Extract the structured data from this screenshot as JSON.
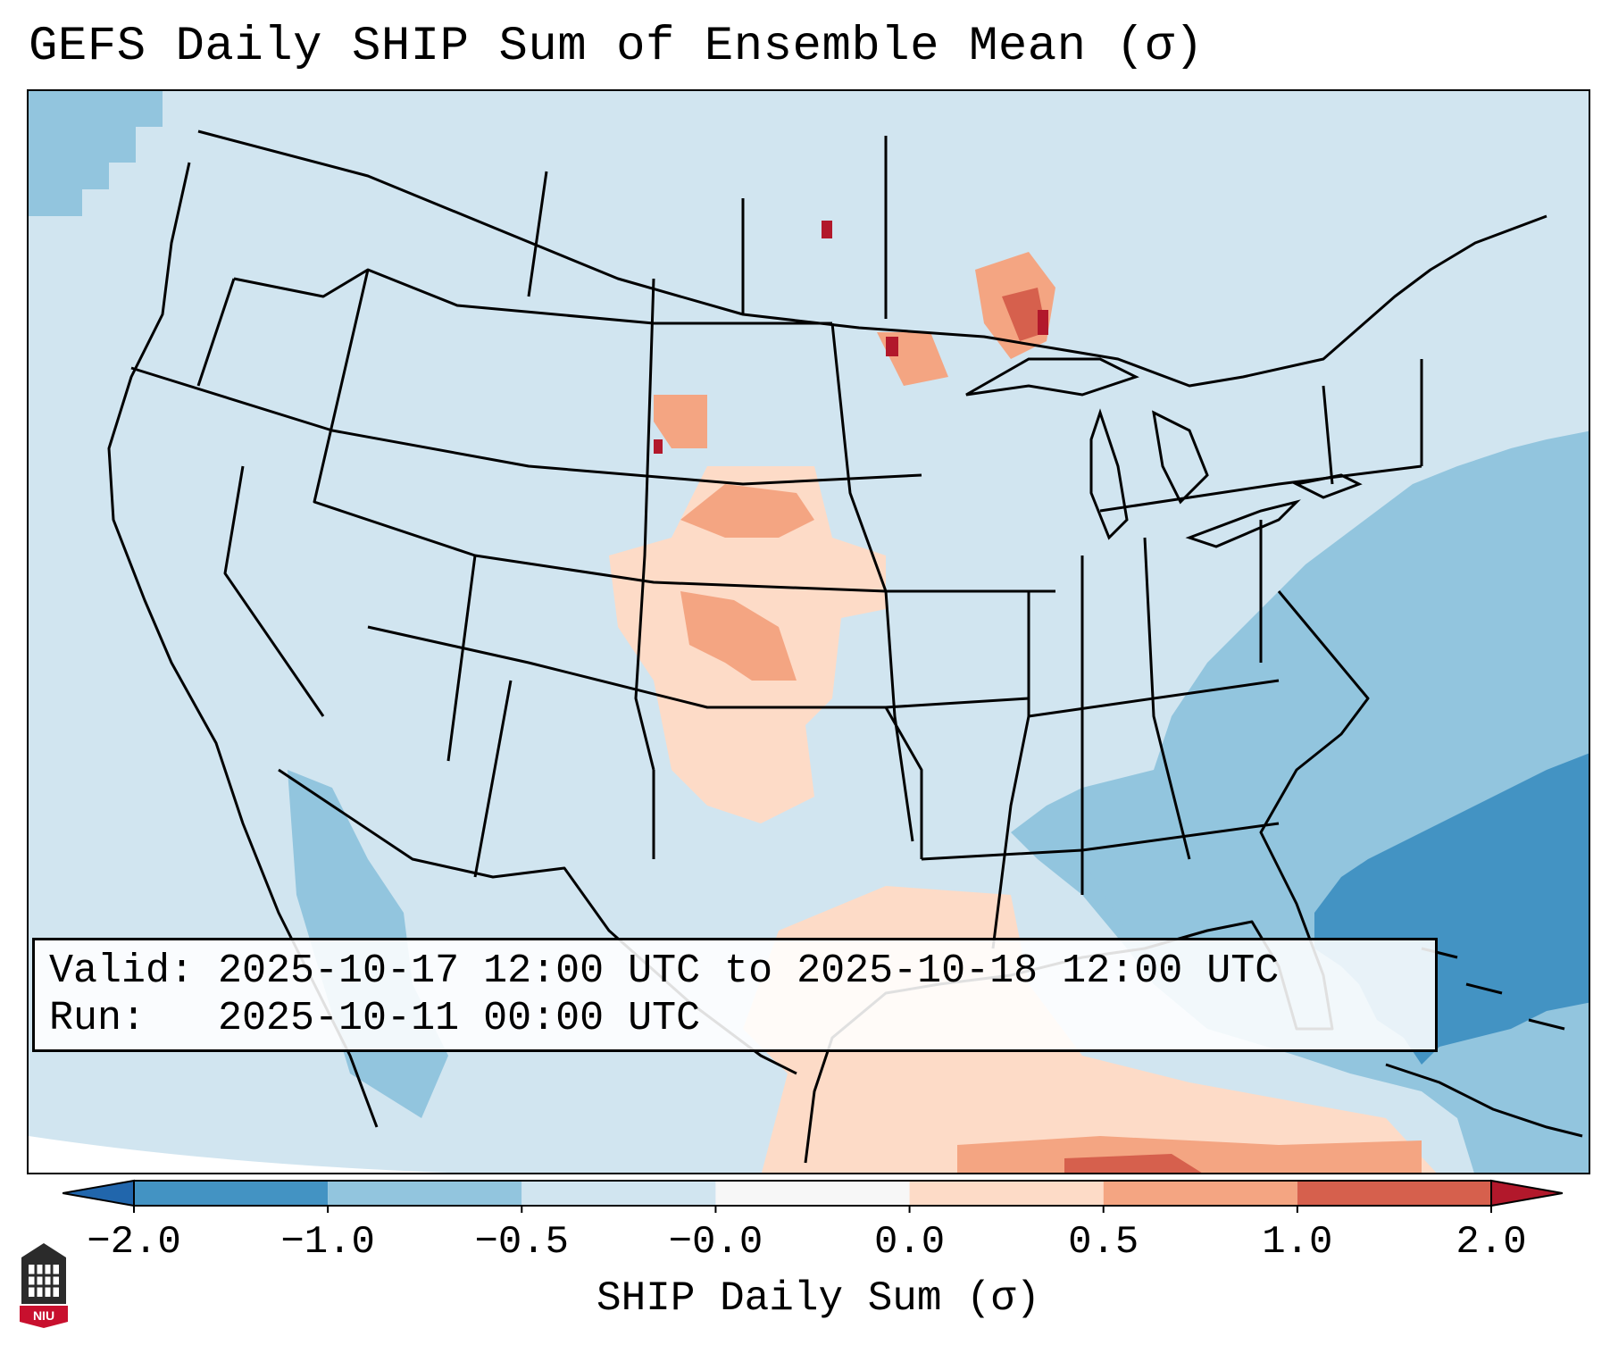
{
  "title": "GEFS Daily SHIP Sum of Ensemble Mean (σ)",
  "info": {
    "valid_line": "Valid: 2025-10-17 12:00 UTC to 2025-10-18 12:00 UTC",
    "run_line": "Run:   2025-10-11 00:00 UTC"
  },
  "colorbar": {
    "label": "SHIP Daily Sum (σ)",
    "ticks": [
      "−2.0",
      "−1.0",
      "−0.5",
      "−0.0",
      "0.0",
      "0.5",
      "1.0",
      "2.0"
    ],
    "colors": [
      "#4393c3",
      "#92c5de",
      "#d1e5f0",
      "#f7f7f7",
      "#fddbc7",
      "#f4a582",
      "#d6604d"
    ],
    "under_color": "#2166ac",
    "over_color": "#b2182b"
  },
  "logo": {
    "text": "NIU"
  },
  "colors": {
    "background_field": "#d1e5f0",
    "ocean_negative": "#92c5de",
    "ocean_strong_negative": "#4393c3",
    "positive_weak": "#fddbc7",
    "positive_mid": "#f4a582",
    "positive_strong": "#d6604d",
    "positive_max": "#b2182b",
    "borders": "#000000"
  }
}
